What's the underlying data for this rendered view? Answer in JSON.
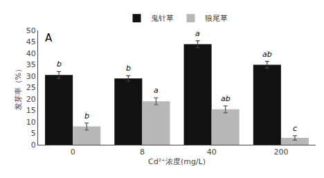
{
  "chart_data": {
    "type": "bar",
    "categories": [
      "0",
      "8",
      "40",
      "200"
    ],
    "series": [
      {
        "name": "鬼针草",
        "color": "#111111",
        "values": [
          30.5,
          29.0,
          44.0,
          35.0
        ],
        "errors": [
          1.5,
          1.2,
          1.5,
          1.5
        ],
        "annotations": [
          "b",
          "b",
          "a",
          "ab"
        ]
      },
      {
        "name": "狼尾草",
        "color": "#b8b8b8",
        "values": [
          8.0,
          19.0,
          15.5,
          3.0
        ],
        "errors": [
          1.5,
          1.5,
          1.5,
          1.0
        ],
        "annotations": [
          "b",
          "a",
          "ab",
          "c"
        ]
      }
    ],
    "xlabel": "Cd²⁺浓度(mg/L)",
    "ylabel": "发芽率（%）",
    "ylim": [
      0,
      50
    ],
    "yticks": [
      0,
      5,
      10,
      15,
      20,
      25,
      30,
      35,
      40,
      45,
      50
    ],
    "panel_label": "A",
    "grid": false,
    "legend": "top"
  }
}
